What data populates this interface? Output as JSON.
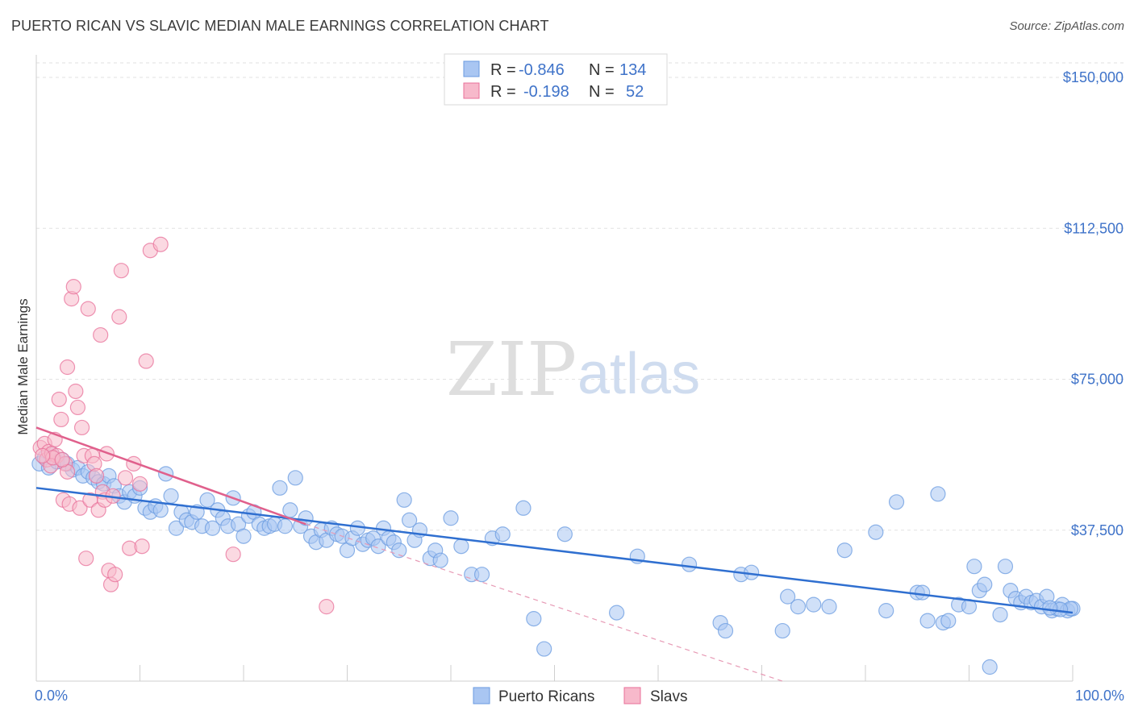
{
  "title": "PUERTO RICAN VS SLAVIC MEDIAN MALE EARNINGS CORRELATION CHART",
  "source": "Source: ZipAtlas.com",
  "watermark": {
    "zip": "ZIP",
    "atlas": "atlas"
  },
  "legend_top": {
    "rows": [
      {
        "r_label": "R =",
        "r_value": "-0.846",
        "n_label": "N =",
        "n_value": "134",
        "color": "#a9c6f2"
      },
      {
        "r_label": "R =",
        "r_value": "-0.198",
        "n_label": "N =",
        "n_value": "52",
        "color": "#f7b9cb"
      }
    ]
  },
  "legend_bottom": [
    {
      "label": "Puerto Ricans",
      "color": "#a9c6f2"
    },
    {
      "label": "Slavs",
      "color": "#f7b9cb"
    }
  ],
  "chart_data": {
    "type": "scatter",
    "title": "PUERTO RICAN VS SLAVIC MEDIAN MALE EARNINGS CORRELATION CHART",
    "xlabel": "",
    "ylabel": "Median Male Earnings",
    "xlim": [
      0,
      100
    ],
    "ylim": [
      0,
      150000
    ],
    "x_tick_labels": [
      "0.0%",
      "100.0%"
    ],
    "y_ticks": [
      37500,
      75000,
      112500,
      150000
    ],
    "y_tick_labels": [
      "$37,500",
      "$75,000",
      "$112,500",
      "$150,000"
    ],
    "grid": "horizontal dashed",
    "series": [
      {
        "name": "Puerto Ricans",
        "color": "#6a9be0",
        "fill": "#a9c6f2",
        "trend": {
          "x": [
            0,
            100
          ],
          "y": [
            48000,
            17000
          ]
        },
        "points": [
          [
            0.3,
            54000
          ],
          [
            0.8,
            55500
          ],
          [
            1.2,
            53000
          ],
          [
            1.5,
            56500
          ],
          [
            2.0,
            54500
          ],
          [
            2.5,
            55000
          ],
          [
            3.0,
            54000
          ],
          [
            3.5,
            52500
          ],
          [
            4.0,
            53000
          ],
          [
            4.5,
            51000
          ],
          [
            5.0,
            52000
          ],
          [
            5.5,
            50500
          ],
          [
            6.0,
            49500
          ],
          [
            6.5,
            49000
          ],
          [
            7.0,
            51000
          ],
          [
            7.5,
            48500
          ],
          [
            8.0,
            46000
          ],
          [
            8.5,
            44500
          ],
          [
            9.0,
            47000
          ],
          [
            9.5,
            46000
          ],
          [
            10.0,
            48000
          ],
          [
            10.5,
            43000
          ],
          [
            11.0,
            42000
          ],
          [
            11.5,
            43500
          ],
          [
            12.0,
            42500
          ],
          [
            12.5,
            51500
          ],
          [
            13.0,
            46000
          ],
          [
            13.5,
            38000
          ],
          [
            14.0,
            42000
          ],
          [
            14.5,
            40000
          ],
          [
            15.0,
            39500
          ],
          [
            15.5,
            42000
          ],
          [
            16.0,
            38500
          ],
          [
            16.5,
            45000
          ],
          [
            17.0,
            38000
          ],
          [
            17.5,
            42500
          ],
          [
            18.0,
            40500
          ],
          [
            18.5,
            38500
          ],
          [
            19.0,
            45500
          ],
          [
            19.5,
            39000
          ],
          [
            20.0,
            36000
          ],
          [
            20.5,
            41000
          ],
          [
            21.0,
            42000
          ],
          [
            21.5,
            39000
          ],
          [
            22.0,
            38000
          ],
          [
            22.5,
            38500
          ],
          [
            23.0,
            39000
          ],
          [
            23.5,
            48000
          ],
          [
            24.0,
            38500
          ],
          [
            24.5,
            42500
          ],
          [
            25.0,
            50500
          ],
          [
            25.5,
            38500
          ],
          [
            26.0,
            40500
          ],
          [
            26.5,
            36000
          ],
          [
            27.0,
            34500
          ],
          [
            27.5,
            37500
          ],
          [
            28.0,
            35000
          ],
          [
            28.5,
            38000
          ],
          [
            29.0,
            36500
          ],
          [
            29.5,
            36000
          ],
          [
            30.0,
            32500
          ],
          [
            30.5,
            35500
          ],
          [
            31.0,
            38000
          ],
          [
            31.5,
            34000
          ],
          [
            32.0,
            35000
          ],
          [
            32.5,
            35500
          ],
          [
            33.0,
            33500
          ],
          [
            33.5,
            38000
          ],
          [
            34.0,
            35500
          ],
          [
            34.5,
            34500
          ],
          [
            35.0,
            32500
          ],
          [
            35.5,
            45000
          ],
          [
            36.0,
            40000
          ],
          [
            36.5,
            35000
          ],
          [
            37.0,
            37500
          ],
          [
            38.0,
            30500
          ],
          [
            38.5,
            32500
          ],
          [
            39.0,
            30000
          ],
          [
            40.0,
            40500
          ],
          [
            41.0,
            33500
          ],
          [
            42.0,
            26500
          ],
          [
            43.0,
            26500
          ],
          [
            44.0,
            35500
          ],
          [
            45.0,
            36500
          ],
          [
            47.0,
            43000
          ],
          [
            48.0,
            15500
          ],
          [
            49.0,
            8000
          ],
          [
            51.0,
            36500
          ],
          [
            56.0,
            17000
          ],
          [
            58.0,
            31000
          ],
          [
            63.0,
            29000
          ],
          [
            66.0,
            14500
          ],
          [
            66.5,
            12500
          ],
          [
            68.0,
            26500
          ],
          [
            69.0,
            27000
          ],
          [
            72.0,
            12500
          ],
          [
            72.5,
            21000
          ],
          [
            73.5,
            18500
          ],
          [
            75.0,
            19000
          ],
          [
            76.5,
            18500
          ],
          [
            78.0,
            32500
          ],
          [
            81.0,
            37000
          ],
          [
            82.0,
            17500
          ],
          [
            83.0,
            44500
          ],
          [
            85.0,
            22000
          ],
          [
            85.5,
            22000
          ],
          [
            86.0,
            15000
          ],
          [
            87.0,
            46500
          ],
          [
            87.5,
            14500
          ],
          [
            88.0,
            15000
          ],
          [
            89.0,
            19000
          ],
          [
            90.0,
            18500
          ],
          [
            90.5,
            28500
          ],
          [
            91.0,
            22500
          ],
          [
            91.5,
            24000
          ],
          [
            92.0,
            3500
          ],
          [
            93.0,
            16500
          ],
          [
            93.5,
            28500
          ],
          [
            94.0,
            22500
          ],
          [
            94.5,
            20500
          ],
          [
            95.0,
            19500
          ],
          [
            95.5,
            21000
          ],
          [
            96.0,
            19500
          ],
          [
            96.5,
            20000
          ],
          [
            97.0,
            18500
          ],
          [
            97.5,
            21000
          ],
          [
            98.0,
            17500
          ],
          [
            98.5,
            18000
          ],
          [
            99.0,
            19000
          ],
          [
            99.5,
            17500
          ],
          [
            100.0,
            18000
          ],
          [
            99.8,
            18000
          ],
          [
            98.8,
            17800
          ],
          [
            97.8,
            18200
          ]
        ]
      },
      {
        "name": "Slavs",
        "color": "#e8709a",
        "fill": "#f7b9cb",
        "trend": {
          "x": [
            0,
            26
          ],
          "y": [
            63000,
            39000
          ]
        },
        "trend_extension": {
          "x": [
            26,
            72
          ],
          "y": [
            39000,
            -5000
          ]
        },
        "points": [
          [
            0.4,
            58000
          ],
          [
            0.8,
            59000
          ],
          [
            1.0,
            55000
          ],
          [
            1.2,
            57000
          ],
          [
            1.5,
            56500
          ],
          [
            1.8,
            60000
          ],
          [
            2.0,
            56000
          ],
          [
            2.2,
            70000
          ],
          [
            2.4,
            65000
          ],
          [
            2.6,
            45000
          ],
          [
            2.8,
            54000
          ],
          [
            3.0,
            78000
          ],
          [
            3.2,
            44000
          ],
          [
            3.4,
            95000
          ],
          [
            3.6,
            98000
          ],
          [
            3.8,
            72000
          ],
          [
            4.0,
            68000
          ],
          [
            4.2,
            43000
          ],
          [
            4.4,
            63000
          ],
          [
            4.6,
            56000
          ],
          [
            4.8,
            30500
          ],
          [
            5.0,
            92500
          ],
          [
            5.2,
            45000
          ],
          [
            5.4,
            56000
          ],
          [
            5.6,
            54000
          ],
          [
            5.8,
            51000
          ],
          [
            6.0,
            42500
          ],
          [
            6.2,
            86000
          ],
          [
            6.4,
            47000
          ],
          [
            6.6,
            45000
          ],
          [
            6.8,
            56500
          ],
          [
            7.0,
            27500
          ],
          [
            7.2,
            24000
          ],
          [
            7.4,
            46000
          ],
          [
            7.6,
            26500
          ],
          [
            8.0,
            90500
          ],
          [
            8.2,
            102000
          ],
          [
            8.6,
            50500
          ],
          [
            9.0,
            33000
          ],
          [
            9.4,
            54000
          ],
          [
            10.0,
            49000
          ],
          [
            10.2,
            33500
          ],
          [
            10.6,
            79500
          ],
          [
            11.0,
            107000
          ],
          [
            12.0,
            108500
          ],
          [
            3.0,
            52000
          ],
          [
            1.4,
            53500
          ],
          [
            1.6,
            55500
          ],
          [
            0.6,
            56000
          ],
          [
            2.5,
            55000
          ],
          [
            19.0,
            31500
          ],
          [
            28.0,
            18500
          ]
        ]
      }
    ]
  }
}
